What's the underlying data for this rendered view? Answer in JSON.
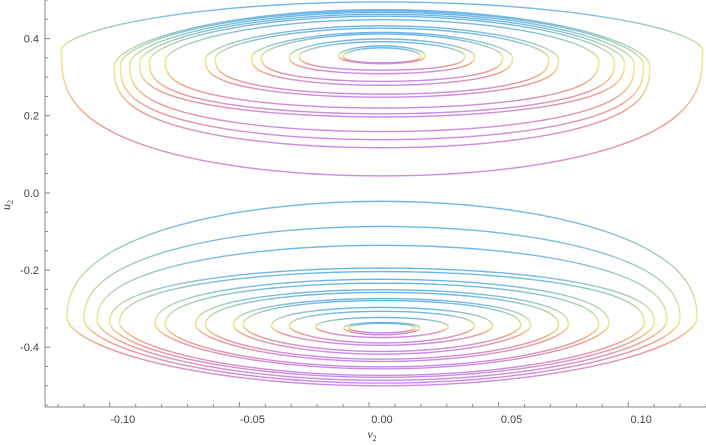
{
  "chart_data": {
    "type": "scatter",
    "title": "",
    "xlabel": "v",
    "xlabel_sub": "2",
    "ylabel": "u",
    "ylabel_sub": "2",
    "xlim": [
      -0.13,
      0.125
    ],
    "ylim": [
      -0.555,
      0.5
    ],
    "x_ticks": [
      {
        "value": -0.1,
        "label": "-0.10"
      },
      {
        "value": -0.05,
        "label": "-0.05"
      },
      {
        "value": 0.0,
        "label": "0.00"
      },
      {
        "value": 0.05,
        "label": "0.05"
      },
      {
        "value": 0.1,
        "label": "0.10"
      }
    ],
    "y_ticks": [
      {
        "value": 0.4,
        "label": "0.4"
      },
      {
        "value": 0.2,
        "label": "0.2"
      },
      {
        "value": 0.0,
        "label": "0.0"
      },
      {
        "value": -0.2,
        "label": "-0.2"
      },
      {
        "value": -0.4,
        "label": "-0.4"
      }
    ],
    "grid": false,
    "legend": "none",
    "color_scale": {
      "top": "#6ab6ea",
      "side": "#f1ea86",
      "lower_side": "#ee9a8f",
      "bottom": "#c98be9"
    },
    "orbits_upper": [
      {
        "half_width": 0.0149,
        "top": 0.376,
        "bottom": 0.337,
        "center": 0.356
      },
      {
        "half_width": 0.0166,
        "top": 0.381,
        "bottom": 0.335,
        "center": 0.358
      },
      {
        "half_width": 0.0319,
        "top": 0.392,
        "bottom": 0.318,
        "center": 0.356
      },
      {
        "half_width": 0.0357,
        "top": 0.399,
        "bottom": 0.309,
        "center": 0.355
      },
      {
        "half_width": 0.0465,
        "top": 0.412,
        "bottom": 0.289,
        "center": 0.353
      },
      {
        "half_width": 0.0503,
        "top": 0.416,
        "bottom": 0.279,
        "center": 0.352
      },
      {
        "half_width": 0.0643,
        "top": 0.427,
        "bottom": 0.256,
        "center": 0.349
      },
      {
        "half_width": 0.0681,
        "top": 0.433,
        "bottom": 0.248,
        "center": 0.347
      },
      {
        "half_width": 0.0836,
        "top": 0.449,
        "bottom": 0.22,
        "center": 0.344
      },
      {
        "half_width": 0.0897,
        "top": 0.458,
        "bottom": 0.205,
        "center": 0.342
      },
      {
        "half_width": 0.0935,
        "top": 0.463,
        "bottom": 0.197,
        "center": 0.339
      },
      {
        "half_width": 0.0973,
        "top": 0.468,
        "bottom": 0.159,
        "center": 0.335
      },
      {
        "half_width": 0.1009,
        "top": 0.472,
        "bottom": 0.138,
        "center": 0.333
      },
      {
        "half_width": 0.1033,
        "top": 0.475,
        "bottom": 0.117,
        "center": 0.33
      },
      {
        "half_width": 0.1237,
        "top": 0.495,
        "bottom": 0.044,
        "center": 0.37
      }
    ],
    "orbits_lower": [
      {
        "half_width": 0.0128,
        "top": -0.338,
        "bottom": -0.363,
        "center": -0.351
      },
      {
        "half_width": 0.0147,
        "top": -0.336,
        "bottom": -0.368,
        "center": -0.351
      },
      {
        "half_width": 0.0255,
        "top": -0.323,
        "bottom": -0.375,
        "center": -0.348
      },
      {
        "half_width": 0.0357,
        "top": -0.307,
        "bottom": -0.389,
        "center": -0.346
      },
      {
        "half_width": 0.0426,
        "top": -0.297,
        "bottom": -0.395,
        "center": -0.346
      },
      {
        "half_width": 0.0535,
        "top": -0.279,
        "bottom": -0.411,
        "center": -0.344
      },
      {
        "half_width": 0.0573,
        "top": -0.274,
        "bottom": -0.418,
        "center": -0.344
      },
      {
        "half_width": 0.0681,
        "top": -0.258,
        "bottom": -0.431,
        "center": -0.344
      },
      {
        "half_width": 0.0719,
        "top": -0.251,
        "bottom": -0.437,
        "center": -0.342
      },
      {
        "half_width": 0.0836,
        "top": -0.234,
        "bottom": -0.451,
        "center": -0.343
      },
      {
        "half_width": 0.0875,
        "top": -0.224,
        "bottom": -0.456,
        "center": -0.34
      },
      {
        "half_width": 0.1012,
        "top": -0.204,
        "bottom": -0.473,
        "center": -0.337
      },
      {
        "half_width": 0.1051,
        "top": -0.195,
        "bottom": -0.478,
        "center": -0.336
      },
      {
        "half_width": 0.1099,
        "top": -0.136,
        "bottom": -0.486,
        "center": -0.331
      },
      {
        "half_width": 0.115,
        "top": -0.087,
        "bottom": -0.493,
        "center": -0.328
      },
      {
        "half_width": 0.1215,
        "top": -0.022,
        "bottom": -0.5,
        "center": -0.325
      }
    ]
  }
}
